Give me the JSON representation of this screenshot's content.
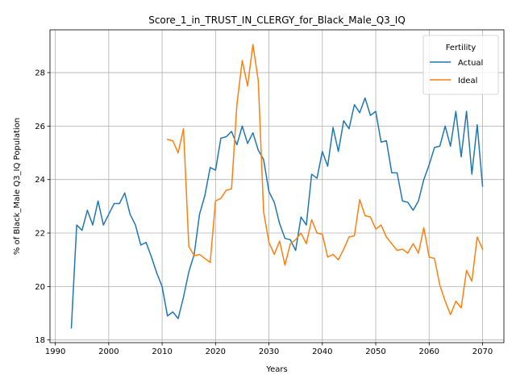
{
  "chart_data": {
    "type": "line",
    "title": "Score_1_in_TRUST_IN_CLERGY_for_Black_Male_Q3_IQ",
    "xlabel": "Years",
    "ylabel": "% of Black_Male Q3_IQ Population",
    "xlim": [
      1989,
      2074
    ],
    "ylim": [
      17.9,
      29.6
    ],
    "xticks": [
      "1990",
      "2000",
      "2010",
      "2020",
      "2030",
      "2040",
      "2050",
      "2060",
      "2070"
    ],
    "yticks": [
      "18",
      "20",
      "22",
      "24",
      "26",
      "28"
    ],
    "grid": true,
    "legend": {
      "title": "Fertility",
      "placement": "top-right"
    },
    "series": [
      {
        "name": "Actual",
        "color": "#1f77b4",
        "x": [
          1993,
          1994,
          1995,
          1996,
          1997,
          1998,
          1999,
          2000,
          2001,
          2002,
          2003,
          2004,
          2005,
          2006,
          2007,
          2008,
          2009,
          2010,
          2011,
          2012,
          2013,
          2014,
          2015,
          2016,
          2017,
          2018,
          2019,
          2020,
          2021,
          2022,
          2023,
          2024,
          2025,
          2026,
          2027,
          2028,
          2029,
          2030,
          2031,
          2032,
          2033,
          2034,
          2035,
          2036,
          2037,
          2038,
          2039,
          2040,
          2041,
          2042,
          2043,
          2044,
          2045,
          2046,
          2047,
          2048,
          2049,
          2050,
          2051,
          2052,
          2053,
          2054,
          2055,
          2056,
          2057,
          2058,
          2059,
          2060,
          2061,
          2062,
          2063,
          2064,
          2065,
          2066,
          2067,
          2068,
          2069,
          2070
        ],
        "values": [
          18.45,
          22.3,
          22.1,
          22.85,
          22.3,
          23.2,
          22.3,
          22.7,
          23.1,
          23.1,
          23.5,
          22.7,
          22.3,
          21.55,
          21.65,
          21.1,
          20.5,
          20.0,
          18.9,
          19.05,
          18.8,
          19.6,
          20.55,
          21.2,
          22.7,
          23.4,
          24.45,
          24.35,
          25.55,
          25.6,
          25.8,
          25.3,
          26.0,
          25.35,
          25.75,
          25.1,
          24.75,
          23.55,
          23.15,
          22.35,
          21.8,
          21.75,
          21.35,
          22.6,
          22.3,
          24.2,
          24.05,
          25.05,
          24.5,
          25.95,
          25.05,
          26.2,
          25.9,
          26.8,
          26.5,
          27.05,
          26.4,
          26.55,
          25.4,
          25.45,
          24.25,
          24.25,
          23.2,
          23.15,
          22.85,
          23.2,
          24.0,
          24.55,
          25.2,
          25.25,
          26.0,
          25.25,
          26.55,
          24.85,
          26.55,
          24.2,
          26.05,
          23.75
        ]
      },
      {
        "name": "Ideal",
        "color": "#ff7f0e",
        "x": [
          2011,
          2012,
          2013,
          2014,
          2015,
          2016,
          2017,
          2018,
          2019,
          2020,
          2021,
          2022,
          2023,
          2024,
          2025,
          2026,
          2027,
          2028,
          2029,
          2030,
          2031,
          2032,
          2033,
          2034,
          2035,
          2036,
          2037,
          2038,
          2039,
          2040,
          2041,
          2042,
          2043,
          2044,
          2045,
          2046,
          2047,
          2048,
          2049,
          2050,
          2051,
          2052,
          2053,
          2054,
          2055,
          2056,
          2057,
          2058,
          2059,
          2060,
          2061,
          2062,
          2063,
          2064,
          2065,
          2066,
          2067,
          2068,
          2069,
          2070
        ],
        "values": [
          25.5,
          25.45,
          25.0,
          25.9,
          21.5,
          21.15,
          21.2,
          21.05,
          20.9,
          23.2,
          23.3,
          23.6,
          23.65,
          26.8,
          28.45,
          27.5,
          29.05,
          27.7,
          22.8,
          21.65,
          21.2,
          21.7,
          20.8,
          21.6,
          21.75,
          22.0,
          21.6,
          22.5,
          22.0,
          21.95,
          21.1,
          21.2,
          21.0,
          21.4,
          21.85,
          21.9,
          23.25,
          22.65,
          22.6,
          22.15,
          22.3,
          21.85,
          21.6,
          21.35,
          21.4,
          21.25,
          21.6,
          21.25,
          22.2,
          21.1,
          21.05,
          20.05,
          19.45,
          18.95,
          19.45,
          19.2,
          20.6,
          20.2,
          21.85,
          21.4
        ]
      }
    ]
  }
}
